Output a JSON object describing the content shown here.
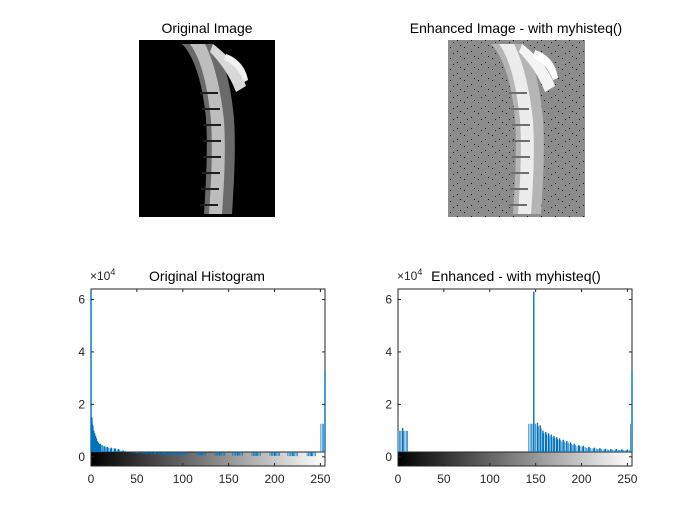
{
  "figure": {
    "panels": [
      {
        "title": "Original Image",
        "kind": "image",
        "variant": "original"
      },
      {
        "title": "Enhanced Image - with myhisteq()",
        "kind": "image",
        "variant": "enhanced"
      }
    ]
  },
  "chart_data": [
    {
      "type": "bar",
      "title": "Original Histogram",
      "xlabel": "",
      "ylabel": "",
      "xlim": [
        0,
        255
      ],
      "ylim": [
        -0.35,
        6.4
      ],
      "y_multiplier_label": "×10^4",
      "x_ticks": [
        0,
        50,
        100,
        150,
        200,
        250
      ],
      "y_ticks": [
        0,
        2,
        4,
        6
      ],
      "colorbar": "grayscale",
      "color": "#0072BD",
      "bins": [
        {
          "x": 0,
          "y": 6.3
        },
        {
          "x": 1,
          "y": 1.5
        },
        {
          "x": 2,
          "y": 1.2
        },
        {
          "x": 3,
          "y": 1.0
        },
        {
          "x": 4,
          "y": 0.9
        },
        {
          "x": 5,
          "y": 0.8
        },
        {
          "x": 6,
          "y": 0.7
        },
        {
          "x": 7,
          "y": 0.6
        },
        {
          "x": 8,
          "y": 0.55
        },
        {
          "x": 10,
          "y": 0.5
        },
        {
          "x": 12,
          "y": 0.45
        },
        {
          "x": 15,
          "y": 0.4
        },
        {
          "x": 18,
          "y": 0.38
        },
        {
          "x": 22,
          "y": 0.35
        },
        {
          "x": 26,
          "y": 0.33
        },
        {
          "x": 30,
          "y": 0.3
        },
        {
          "x": 35,
          "y": 0.25
        },
        {
          "x": 40,
          "y": 0.2
        },
        {
          "x": 45,
          "y": 0.18
        },
        {
          "x": 50,
          "y": 0.15
        },
        {
          "x": 60,
          "y": 0.12
        },
        {
          "x": 70,
          "y": 0.1
        },
        {
          "x": 80,
          "y": 0.09
        },
        {
          "x": 90,
          "y": 0.08
        },
        {
          "x": 100,
          "y": 0.07
        },
        {
          "x": 120,
          "y": 0.06
        },
        {
          "x": 140,
          "y": 0.05
        },
        {
          "x": 160,
          "y": 0.05
        },
        {
          "x": 180,
          "y": 0.04
        },
        {
          "x": 200,
          "y": 0.04
        },
        {
          "x": 220,
          "y": 0.03
        },
        {
          "x": 240,
          "y": 0.03
        },
        {
          "x": 255,
          "y": 3.3
        }
      ]
    },
    {
      "type": "bar",
      "title": "Enhanced - with myhisteq()",
      "xlabel": "",
      "ylabel": "",
      "xlim": [
        0,
        255
      ],
      "ylim": [
        -0.35,
        6.4
      ],
      "y_multiplier_label": "×10^4",
      "x_ticks": [
        0,
        50,
        100,
        150,
        200,
        250
      ],
      "y_ticks": [
        0,
        2,
        4,
        6
      ],
      "colorbar": "grayscale",
      "color": "#0072BD",
      "bins": [
        {
          "x": 5,
          "y": 1.1
        },
        {
          "x": 148,
          "y": 6.3
        },
        {
          "x": 152,
          "y": 1.3
        },
        {
          "x": 155,
          "y": 1.2
        },
        {
          "x": 158,
          "y": 1.0
        },
        {
          "x": 161,
          "y": 0.95
        },
        {
          "x": 164,
          "y": 0.9
        },
        {
          "x": 167,
          "y": 0.85
        },
        {
          "x": 170,
          "y": 0.8
        },
        {
          "x": 173,
          "y": 0.75
        },
        {
          "x": 176,
          "y": 0.7
        },
        {
          "x": 180,
          "y": 0.65
        },
        {
          "x": 184,
          "y": 0.6
        },
        {
          "x": 188,
          "y": 0.55
        },
        {
          "x": 192,
          "y": 0.5
        },
        {
          "x": 197,
          "y": 0.45
        },
        {
          "x": 202,
          "y": 0.42
        },
        {
          "x": 208,
          "y": 0.38
        },
        {
          "x": 214,
          "y": 0.35
        },
        {
          "x": 220,
          "y": 0.33
        },
        {
          "x": 226,
          "y": 0.31
        },
        {
          "x": 232,
          "y": 0.3
        },
        {
          "x": 238,
          "y": 0.3
        },
        {
          "x": 244,
          "y": 0.29
        },
        {
          "x": 250,
          "y": 0.28
        },
        {
          "x": 255,
          "y": 3.3
        }
      ]
    }
  ]
}
